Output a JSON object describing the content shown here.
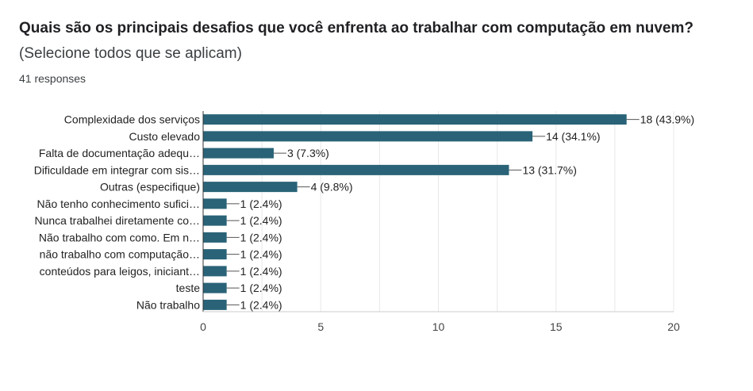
{
  "question": {
    "title_bold": "Quais são os principais desafios que você enfrenta ao trabalhar com computação em nuvem?",
    "title_suffix": "(Selecione todos que se aplicam)",
    "responses": "41 responses"
  },
  "colors": {
    "bar": "#2a6377",
    "grid": "#e8e8e8",
    "axis": "#333333"
  },
  "chart_data": {
    "type": "bar",
    "orientation": "horizontal",
    "categories": [
      "Complexidade dos serviços",
      "Custo elevado",
      "Falta de documentação adequ…",
      "Dificuldade em integrar com sis…",
      "Outras (especifique)",
      "Não tenho conhecimento sufici…",
      "Nunca trabalhei diretamente co…",
      "Não trabalho com como. Em n…",
      "não trabalho com computação…",
      "conteúdos para leigos, iniciant…",
      "teste",
      "Não trabalho"
    ],
    "values": [
      18,
      14,
      3,
      13,
      4,
      1,
      1,
      1,
      1,
      1,
      1,
      1
    ],
    "value_labels": [
      "18 (43.9%)",
      "14 (34.1%)",
      "3 (7.3%)",
      "13 (31.7%)",
      "4 (9.8%)",
      "1 (2.4%)",
      "1 (2.4%)",
      "1 (2.4%)",
      "1 (2.4%)",
      "1 (2.4%)",
      "1 (2.4%)",
      "1 (2.4%)"
    ],
    "xlim": [
      0,
      20
    ],
    "xticks": [
      "0",
      "5",
      "10",
      "15",
      "20"
    ],
    "grid": true
  }
}
